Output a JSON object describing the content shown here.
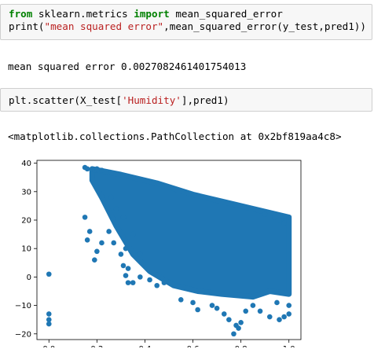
{
  "cells": [
    {
      "id": "cell1",
      "lines": [
        [
          {
            "t": "from",
            "c": "kw"
          },
          {
            "t": " sklearn.metrics ",
            "c": "plain"
          },
          {
            "t": "import",
            "c": "kw"
          },
          {
            "t": " mean_squared_error",
            "c": "plain"
          }
        ],
        [
          {
            "t": "print(",
            "c": "plain"
          },
          {
            "t": "\"mean squared error\"",
            "c": "str"
          },
          {
            "t": ",mean_squared_error(y_test,pred1))",
            "c": "plain"
          }
        ]
      ]
    },
    {
      "id": "cell2",
      "lines": [
        [
          {
            "t": "plt.scatter(X_test[",
            "c": "plain"
          },
          {
            "t": "'Humidity'",
            "c": "str"
          },
          {
            "t": "],pred1)",
            "c": "plain"
          }
        ]
      ]
    }
  ],
  "outputs": {
    "out1": "mean squared error 0.0027082461401754013",
    "out2": "<matplotlib.collections.PathCollection at 0x2bf819aa4c8>"
  },
  "colors": {
    "marker": "#1f77b4"
  },
  "chart_data": {
    "type": "scatter",
    "xlim": [
      -0.05,
      1.05
    ],
    "ylim": [
      -22,
      41
    ],
    "x_ticks": [
      0.0,
      0.2,
      0.4,
      0.6,
      0.8,
      1.0
    ],
    "x_tick_labels": [
      "0.0",
      "0.2",
      "0.4",
      "0.6",
      "0.8",
      "1.0"
    ],
    "y_ticks": [
      -20,
      -10,
      0,
      10,
      20,
      30,
      40
    ],
    "y_tick_labels": [
      "−20",
      "−10",
      "0",
      "10",
      "20",
      "30",
      "40"
    ],
    "grid": false,
    "points": [
      [
        0.0,
        1
      ],
      [
        0.0,
        -13
      ],
      [
        0.0,
        -15
      ],
      [
        0.0,
        -16.5
      ],
      [
        0.15,
        38.5
      ],
      [
        0.16,
        38
      ],
      [
        0.18,
        38
      ],
      [
        0.19,
        37.5
      ],
      [
        0.2,
        38
      ],
      [
        0.22,
        37.5
      ],
      [
        0.24,
        37
      ],
      [
        0.15,
        21
      ],
      [
        0.17,
        16
      ],
      [
        0.16,
        13
      ],
      [
        0.19,
        6
      ],
      [
        0.22,
        12
      ],
      [
        0.2,
        9
      ],
      [
        0.26,
        28
      ],
      [
        0.28,
        24
      ],
      [
        0.31,
        21
      ],
      [
        0.25,
        16
      ],
      [
        0.27,
        12
      ],
      [
        0.3,
        8
      ],
      [
        0.32,
        10
      ],
      [
        0.35,
        15
      ],
      [
        0.38,
        8
      ],
      [
        0.33,
        3
      ],
      [
        0.38,
        0
      ],
      [
        0.31,
        4
      ],
      [
        0.32,
        0.5
      ],
      [
        0.33,
        -2
      ],
      [
        0.35,
        -2
      ],
      [
        0.45,
        -3
      ],
      [
        0.48,
        -2
      ],
      [
        0.42,
        -1
      ],
      [
        0.55,
        -8
      ],
      [
        0.6,
        -9
      ],
      [
        0.62,
        -11.5
      ],
      [
        0.68,
        -10
      ],
      [
        0.7,
        -11
      ],
      [
        0.73,
        -13
      ],
      [
        0.75,
        -15
      ],
      [
        0.78,
        -17
      ],
      [
        0.79,
        -18
      ],
      [
        0.77,
        -20
      ],
      [
        0.8,
        -16
      ],
      [
        0.82,
        -12
      ],
      [
        0.85,
        -10
      ],
      [
        0.88,
        -12
      ],
      [
        0.92,
        -14
      ],
      [
        0.96,
        -15
      ],
      [
        0.98,
        -14
      ],
      [
        1.0,
        -13
      ],
      [
        1.0,
        -10
      ],
      [
        0.95,
        -9
      ],
      [
        1.0,
        21
      ],
      [
        0.98,
        19
      ],
      [
        0.96,
        20
      ],
      [
        0.94,
        21
      ],
      [
        0.9,
        22
      ]
    ],
    "dense_band": {
      "upper": [
        [
          0.18,
          38
        ],
        [
          0.3,
          36
        ],
        [
          0.45,
          33
        ],
        [
          0.6,
          29
        ],
        [
          0.75,
          26
        ],
        [
          0.9,
          23
        ],
        [
          1.0,
          21
        ]
      ],
      "lower": [
        [
          1.0,
          -6
        ],
        [
          0.92,
          -5
        ],
        [
          0.85,
          -7
        ],
        [
          0.72,
          -6
        ],
        [
          0.62,
          -5
        ],
        [
          0.52,
          -3
        ],
        [
          0.42,
          2
        ],
        [
          0.35,
          8
        ],
        [
          0.28,
          18
        ],
        [
          0.22,
          28
        ],
        [
          0.18,
          34
        ]
      ]
    }
  }
}
